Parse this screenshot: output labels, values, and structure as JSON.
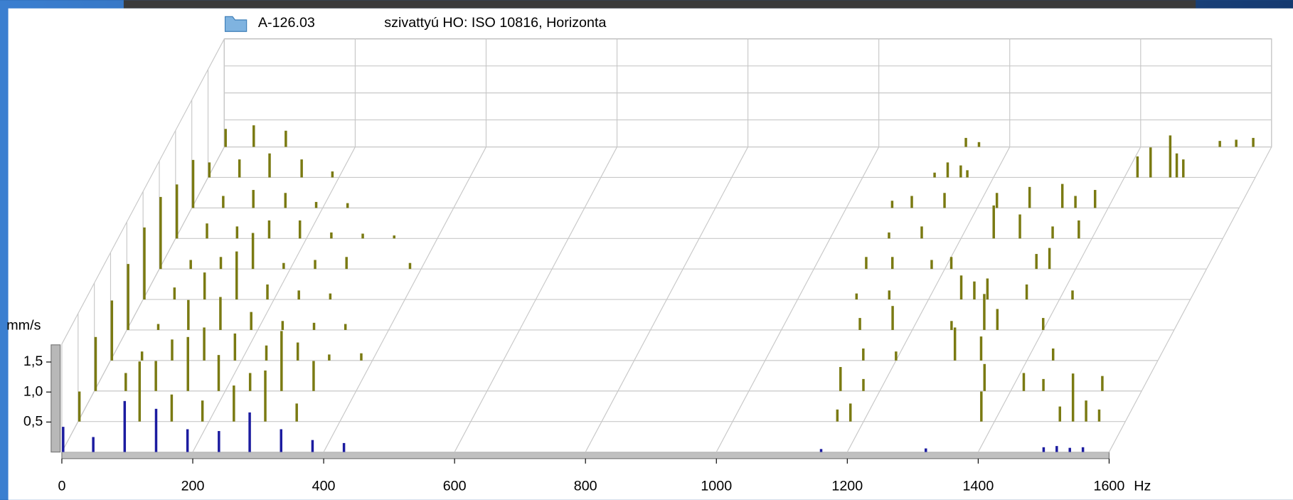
{
  "header": {
    "file": "A-126.03",
    "title": "szivattyú HO: ISO 10816, Horizonta"
  },
  "chart_data": {
    "type": "waterfall",
    "y_unit": "mm/s",
    "x_unit": "Hz",
    "xlim": [
      0,
      1600
    ],
    "xticks": [
      0,
      200,
      400,
      600,
      800,
      1000,
      1200,
      1400,
      1600
    ],
    "ylim": [
      0,
      1.8
    ],
    "yticks": [
      {
        "value": 0.5,
        "label": "0,5"
      },
      {
        "value": 1.0,
        "label": "1,0"
      },
      {
        "value": 1.5,
        "label": "1,5"
      }
    ],
    "grid": true,
    "series": [
      {
        "color": "#1c1ca0",
        "x": [
          2,
          48,
          96,
          144,
          192,
          240,
          287,
          335,
          383,
          431,
          1160,
          1320,
          1500,
          1520,
          1540,
          1560
        ],
        "values": [
          0.42,
          0.25,
          0.85,
          0.72,
          0.38,
          0.35,
          0.66,
          0.38,
          0.2,
          0.15,
          0.05,
          0.06,
          0.08,
          0.1,
          0.07,
          0.08
        ]
      },
      {
        "color": "#7a7a12",
        "x": [
          2,
          94,
          143,
          190,
          238,
          286,
          334,
          1160,
          1180,
          1380,
          1500,
          1520,
          1540,
          1560
        ],
        "values": [
          0.5,
          1.0,
          0.45,
          0.35,
          0.6,
          0.85,
          0.3,
          0.2,
          0.3,
          0.5,
          0.25,
          0.8,
          0.35,
          0.2
        ]
      },
      {
        "color": "#7a7a12",
        "x": [
          2,
          48,
          94,
          143,
          190,
          238,
          286,
          335,
          1140,
          1175,
          1360,
          1420,
          1450,
          1540
        ],
        "values": [
          0.9,
          0.3,
          0.5,
          0.9,
          0.6,
          0.3,
          1.0,
          0.5,
          0.4,
          0.2,
          0.45,
          0.3,
          0.2,
          0.25
        ]
      },
      {
        "color": "#7a7a12",
        "x": [
          2,
          48,
          94,
          143,
          190,
          238,
          286,
          334,
          383,
          1150,
          1200,
          1290,
          1330,
          1440
        ],
        "values": [
          1.0,
          0.15,
          0.35,
          0.55,
          0.45,
          0.25,
          0.3,
          0.1,
          0.12,
          0.2,
          0.15,
          0.55,
          0.4,
          0.2
        ]
      },
      {
        "color": "#7a7a12",
        "x": [
          2,
          48,
          94,
          143,
          190,
          238,
          286,
          334,
          1120,
          1170,
          1260,
          1310,
          1330,
          1400
        ],
        "values": [
          1.1,
          0.1,
          0.5,
          0.55,
          0.3,
          0.15,
          0.12,
          0.1,
          0.2,
          0.4,
          0.15,
          0.6,
          0.35,
          0.2
        ]
      },
      {
        "color": "#7a7a12",
        "x": [
          2,
          48,
          94,
          143,
          190,
          238,
          286,
          1090,
          1140,
          1250,
          1270,
          1290,
          1350,
          1420
        ],
        "values": [
          1.2,
          0.2,
          0.45,
          0.8,
          0.25,
          0.15,
          0.1,
          0.1,
          0.15,
          0.4,
          0.3,
          0.35,
          0.25,
          0.15
        ]
      },
      {
        "color": "#7a7a12",
        "x": [
          2,
          48,
          94,
          143,
          190,
          238,
          286,
          383,
          1080,
          1120,
          1180,
          1210,
          1340,
          1360
        ],
        "values": [
          1.2,
          0.15,
          0.2,
          0.6,
          0.1,
          0.15,
          0.2,
          0.1,
          0.2,
          0.2,
          0.15,
          0.2,
          0.25,
          0.35
        ]
      },
      {
        "color": "#7a7a12",
        "x": [
          2,
          48,
          94,
          143,
          190,
          238,
          286,
          334,
          1090,
          1140,
          1250,
          1290,
          1340,
          1380
        ],
        "values": [
          0.9,
          0.25,
          0.2,
          0.3,
          0.3,
          0.1,
          0.08,
          0.05,
          0.1,
          0.2,
          0.55,
          0.4,
          0.2,
          0.3
        ]
      },
      {
        "color": "#7a7a12",
        "x": [
          2,
          48,
          94,
          143,
          190,
          238,
          1070,
          1100,
          1150,
          1230,
          1280,
          1330,
          1350,
          1380
        ],
        "values": [
          0.8,
          0.2,
          0.3,
          0.25,
          0.1,
          0.08,
          0.12,
          0.2,
          0.25,
          0.25,
          0.35,
          0.4,
          0.2,
          0.3
        ]
      },
      {
        "color": "#7a7a12",
        "x": [
          2,
          48,
          94,
          143,
          190,
          1110,
          1130,
          1150,
          1160,
          1420,
          1440,
          1470,
          1480,
          1490
        ],
        "values": [
          0.25,
          0.3,
          0.4,
          0.3,
          0.1,
          0.08,
          0.25,
          0.2,
          0.12,
          0.35,
          0.5,
          0.7,
          0.4,
          0.3
        ]
      },
      {
        "color": "#7a7a12",
        "x": [
          2,
          45,
          94,
          1133,
          1153,
          1521,
          1546,
          1572
        ],
        "values": [
          0.3,
          0.36,
          0.27,
          0.15,
          0.08,
          0.1,
          0.12,
          0.15
        ]
      }
    ]
  }
}
